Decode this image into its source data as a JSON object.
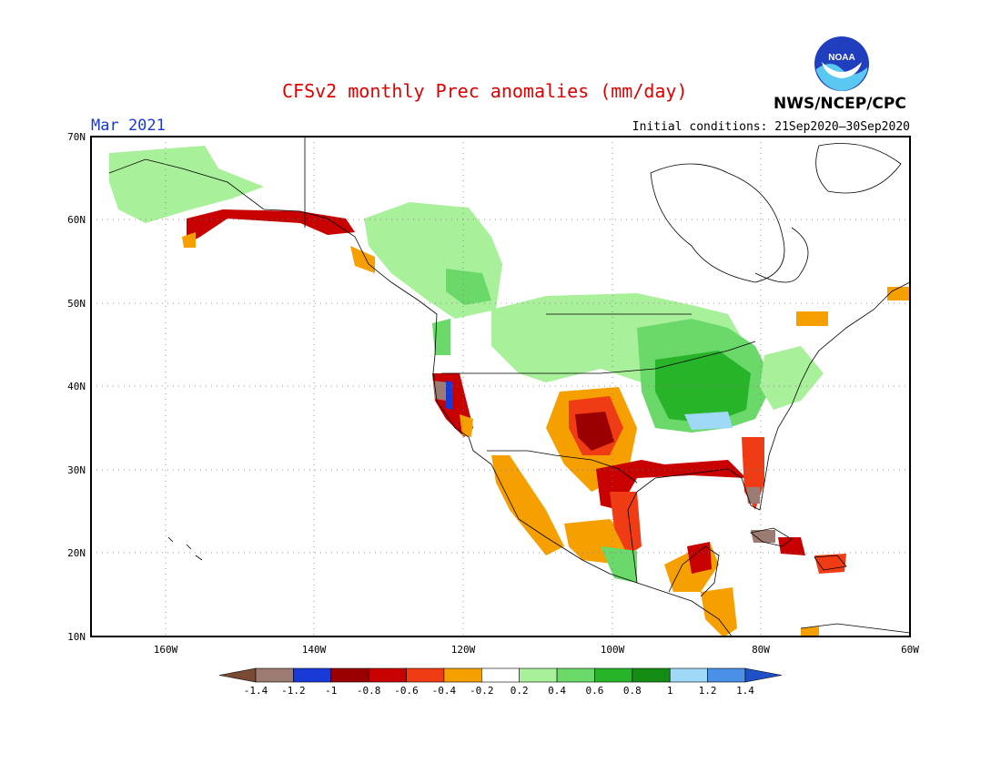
{
  "header": {
    "title": "CFSv2 monthly Prec anomalies (mm/day)",
    "month": "Mar 2021",
    "initial_conditions": "Initial conditions: 21Sep2020–30Sep2020",
    "agency": "NWS/NCEP/CPC",
    "logo_text": "NOAA"
  },
  "map": {
    "lat_labels": [
      "70N",
      "60N",
      "50N",
      "40N",
      "30N",
      "20N",
      "10N"
    ],
    "lon_labels": [
      "160W",
      "140W",
      "120W",
      "100W",
      "80W",
      "60W"
    ],
    "lat_range": [
      10,
      70
    ],
    "lon_range": [
      -170,
      -60
    ],
    "grid": "dotted"
  },
  "colorbar": {
    "labels": [
      "-1.4",
      "-1.2",
      "-1",
      "-0.8",
      "-0.6",
      "-0.4",
      "-0.2",
      "0.2",
      "0.4",
      "0.6",
      "0.8",
      "1",
      "1.2",
      "1.4"
    ],
    "colors": [
      "#7a4a35",
      "#9c7c72",
      "#1a3ad8",
      "#9a0000",
      "#c80000",
      "#f03c14",
      "#f5a000",
      "#ffffff",
      "#a8f09a",
      "#6ad96a",
      "#28b428",
      "#148c14",
      "#a0d8f8",
      "#4a90e8",
      "#2050c8"
    ]
  }
}
